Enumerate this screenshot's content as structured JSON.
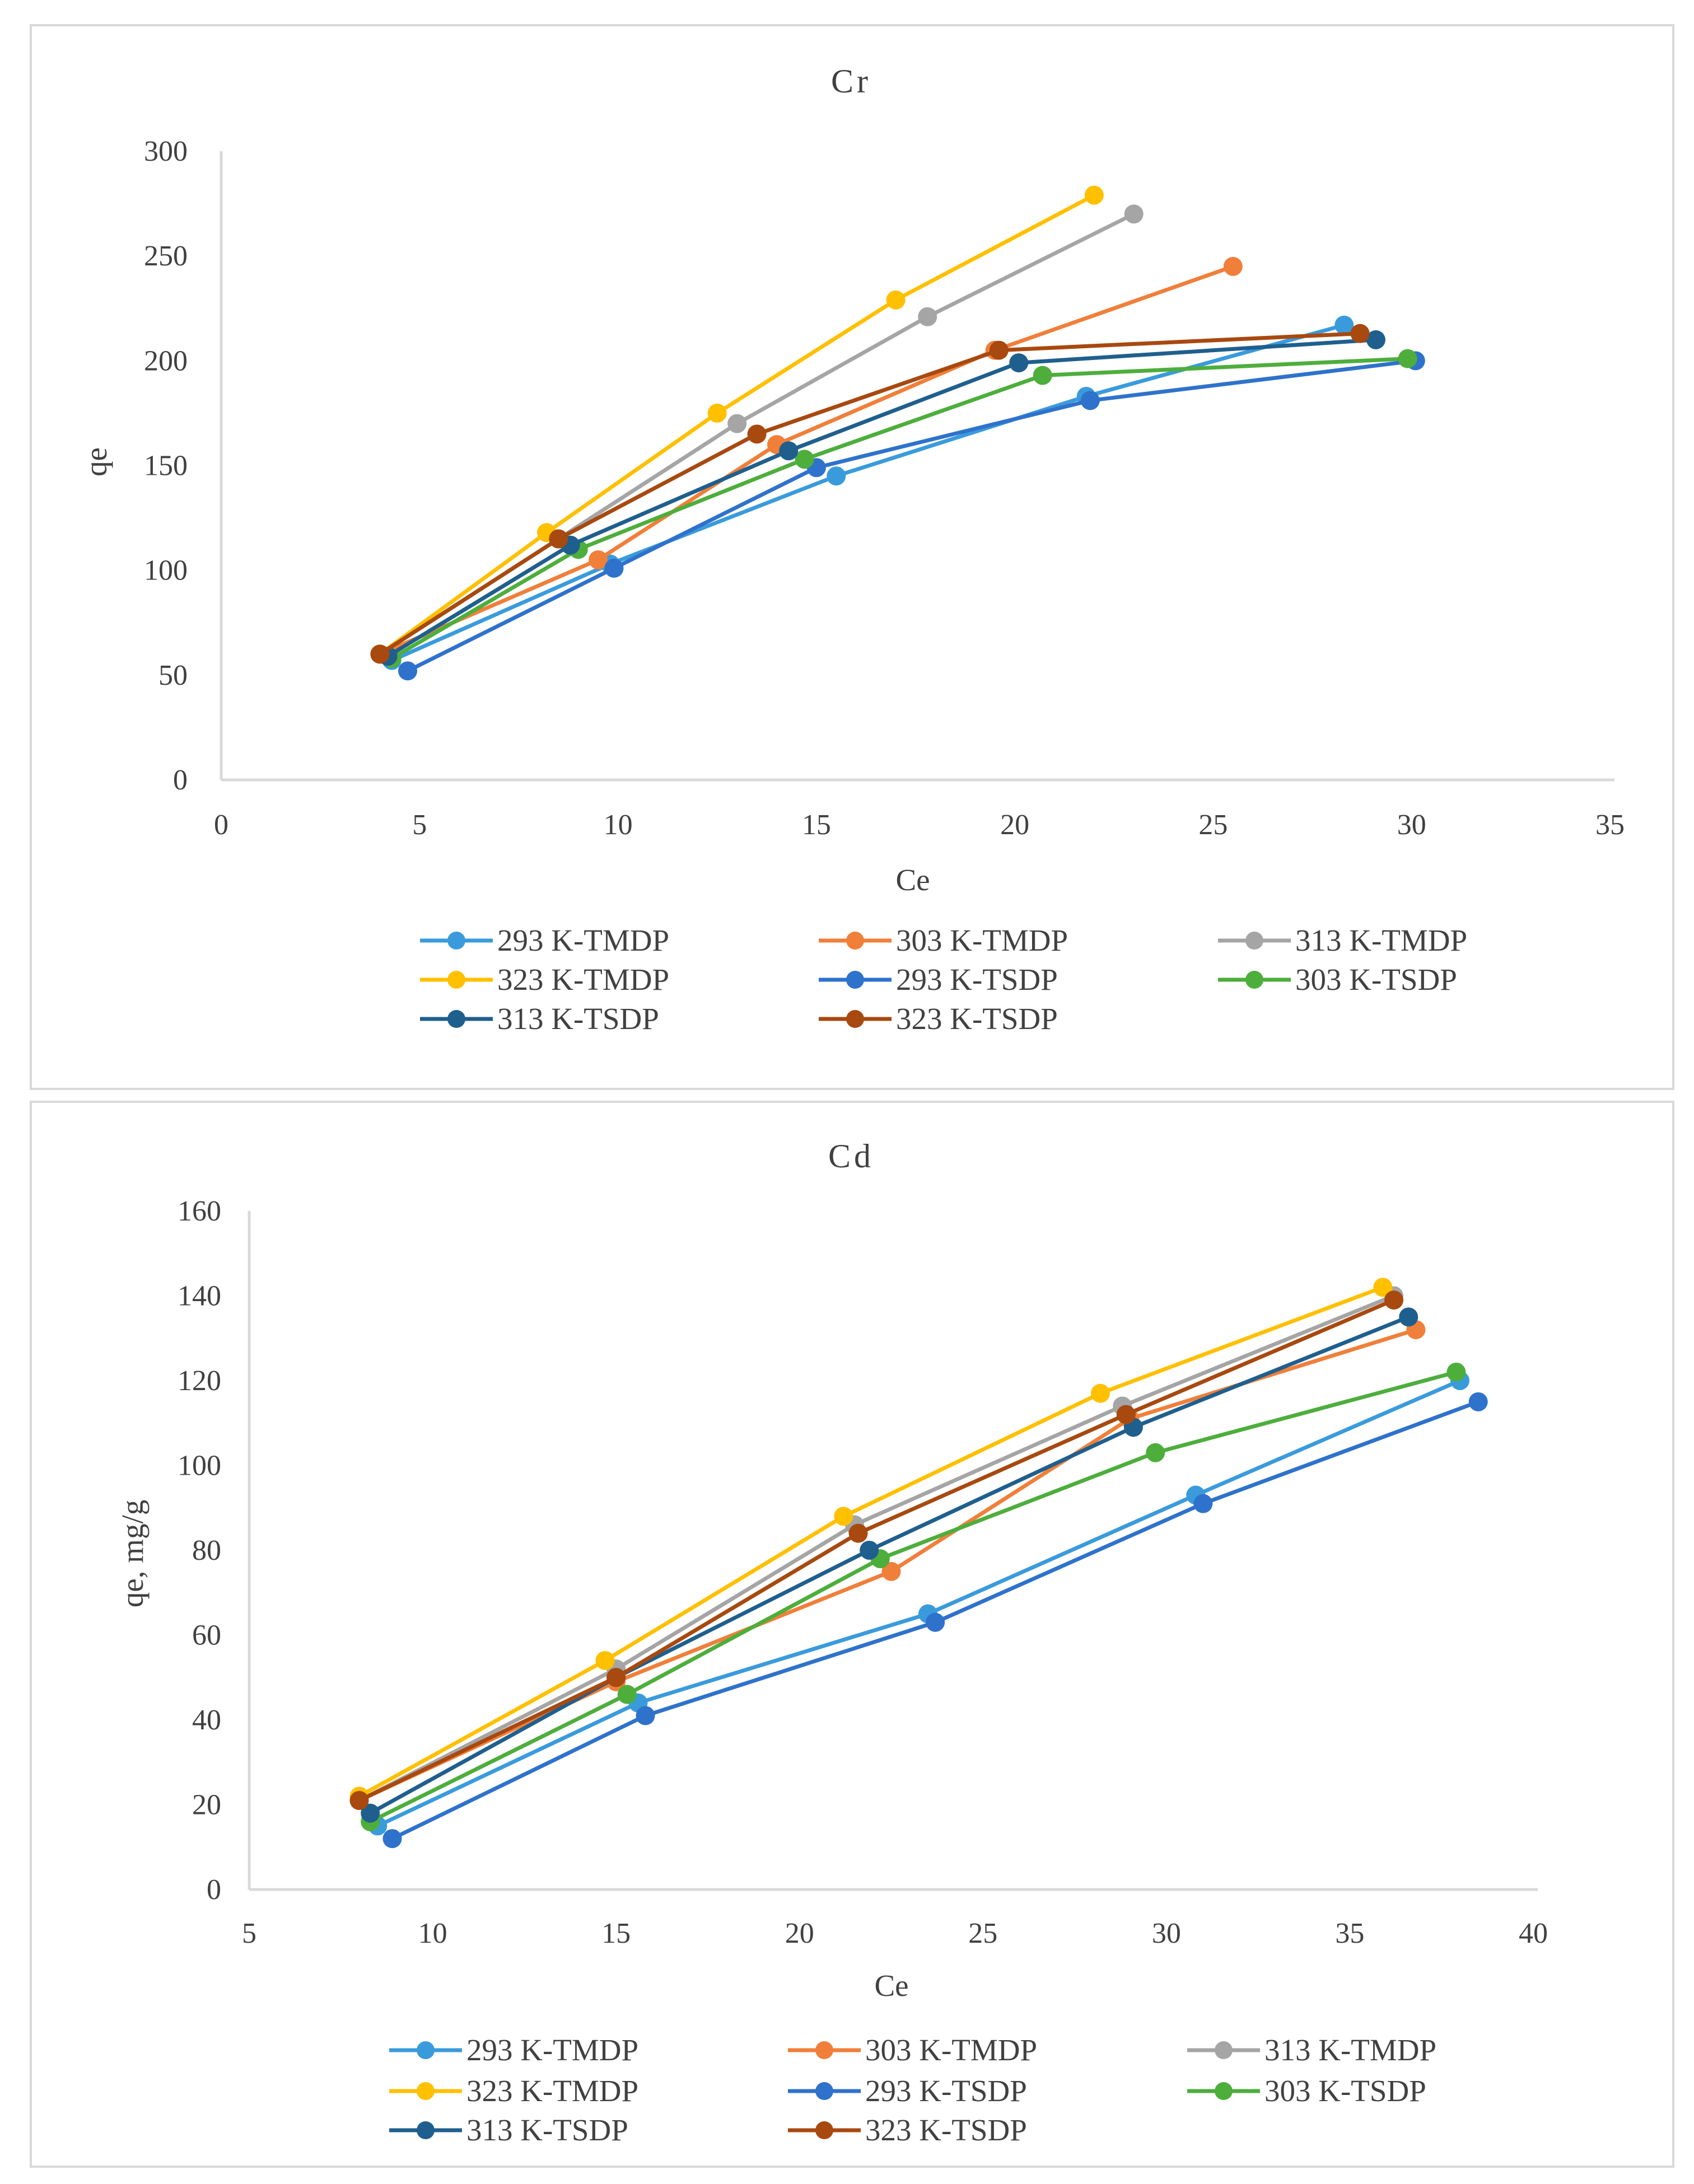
{
  "colors": {
    "293 K-TMDP": "#3A9BDC",
    "303 K-TMDP": "#F07F3A",
    "313 K-TMDP": "#A5A5A5",
    "323 K-TMDP": "#FFC000",
    "293 K-TSDP": "#2E72CC",
    "303 K-TSDP": "#4DAE3C",
    "313 K-TSDP": "#1F5F8E",
    "323 K-TSDP": "#A8490F"
  },
  "chart_data": [
    {
      "type": "line",
      "title": "Cr",
      "xlabel": "Ce",
      "ylabel": "qe",
      "xlim": [
        0,
        35
      ],
      "ylim": [
        0,
        300
      ],
      "xticks": [
        0,
        5,
        10,
        15,
        20,
        25,
        30,
        35
      ],
      "yticks": [
        0,
        50,
        100,
        150,
        200,
        250,
        300
      ],
      "grid": false,
      "legend_placement": "bottom",
      "series": [
        {
          "name": "293 K-TMDP",
          "x": [
            4.3,
            9.8,
            15.5,
            21.8,
            28.3
          ],
          "y": [
            57,
            103,
            145,
            183,
            217
          ]
        },
        {
          "name": "303 K-TMDP",
          "x": [
            4.0,
            9.5,
            14.0,
            19.5,
            25.5
          ],
          "y": [
            60,
            105,
            160,
            205,
            245
          ]
        },
        {
          "name": "313 K-TMDP",
          "x": [
            4.0,
            8.5,
            13.0,
            17.8,
            23.0
          ],
          "y": [
            60,
            115,
            170,
            221,
            270
          ]
        },
        {
          "name": "323 K-TMDP",
          "x": [
            4.0,
            8.2,
            12.5,
            17.0,
            22.0
          ],
          "y": [
            60,
            118,
            175,
            229,
            279
          ]
        },
        {
          "name": "293 K-TSDP",
          "x": [
            4.7,
            9.9,
            15.0,
            21.9,
            30.1
          ],
          "y": [
            52,
            101,
            149,
            181,
            200
          ]
        },
        {
          "name": "303 K-TSDP",
          "x": [
            4.3,
            9.0,
            14.7,
            20.7,
            29.9
          ],
          "y": [
            58,
            110,
            153,
            193,
            201
          ]
        },
        {
          "name": "313 K-TSDP",
          "x": [
            4.2,
            8.8,
            14.3,
            20.1,
            29.1
          ],
          "y": [
            59,
            112,
            157,
            199,
            210
          ]
        },
        {
          "name": "323 K-TSDP",
          "x": [
            4.0,
            8.5,
            13.5,
            19.6,
            28.7
          ],
          "y": [
            60,
            115,
            165,
            205,
            213
          ]
        }
      ]
    },
    {
      "type": "line",
      "title": "Cd",
      "xlabel": "Ce",
      "ylabel": "qe, mg/g",
      "xlim": [
        5,
        40
      ],
      "ylim": [
        0,
        160
      ],
      "xticks": [
        5,
        10,
        15,
        20,
        25,
        30,
        35,
        40
      ],
      "yticks": [
        0,
        20,
        40,
        60,
        80,
        100,
        120,
        140,
        160
      ],
      "grid": false,
      "legend_placement": "bottom",
      "series": [
        {
          "name": "293 K-TMDP",
          "x": [
            8.5,
            15.6,
            23.5,
            30.8,
            38.0
          ],
          "y": [
            15,
            44,
            65,
            93,
            120
          ]
        },
        {
          "name": "303 K-TMDP",
          "x": [
            8.0,
            15.0,
            22.5,
            29.0,
            36.8
          ],
          "y": [
            21,
            49,
            75,
            111,
            132
          ]
        },
        {
          "name": "313 K-TMDP",
          "x": [
            8.0,
            15.0,
            21.5,
            28.8,
            36.2
          ],
          "y": [
            21,
            52,
            86,
            114,
            140
          ]
        },
        {
          "name": "323 K-TMDP",
          "x": [
            8.0,
            14.7,
            21.2,
            28.2,
            35.9
          ],
          "y": [
            22,
            54,
            88,
            117,
            142
          ]
        },
        {
          "name": "293 K-TSDP",
          "x": [
            8.9,
            15.8,
            23.7,
            31.0,
            38.5
          ],
          "y": [
            12,
            41,
            63,
            91,
            115
          ]
        },
        {
          "name": "303 K-TSDP",
          "x": [
            8.3,
            15.3,
            22.2,
            29.7,
            37.9
          ],
          "y": [
            16,
            46,
            78,
            103,
            122
          ]
        },
        {
          "name": "313 K-TSDP",
          "x": [
            8.3,
            15.0,
            21.9,
            29.1,
            36.6
          ],
          "y": [
            18,
            50,
            80,
            109,
            135
          ]
        },
        {
          "name": "323 K-TSDP",
          "x": [
            8.0,
            15.0,
            21.6,
            28.9,
            36.2
          ],
          "y": [
            21,
            50,
            84,
            112,
            139
          ]
        }
      ]
    }
  ]
}
